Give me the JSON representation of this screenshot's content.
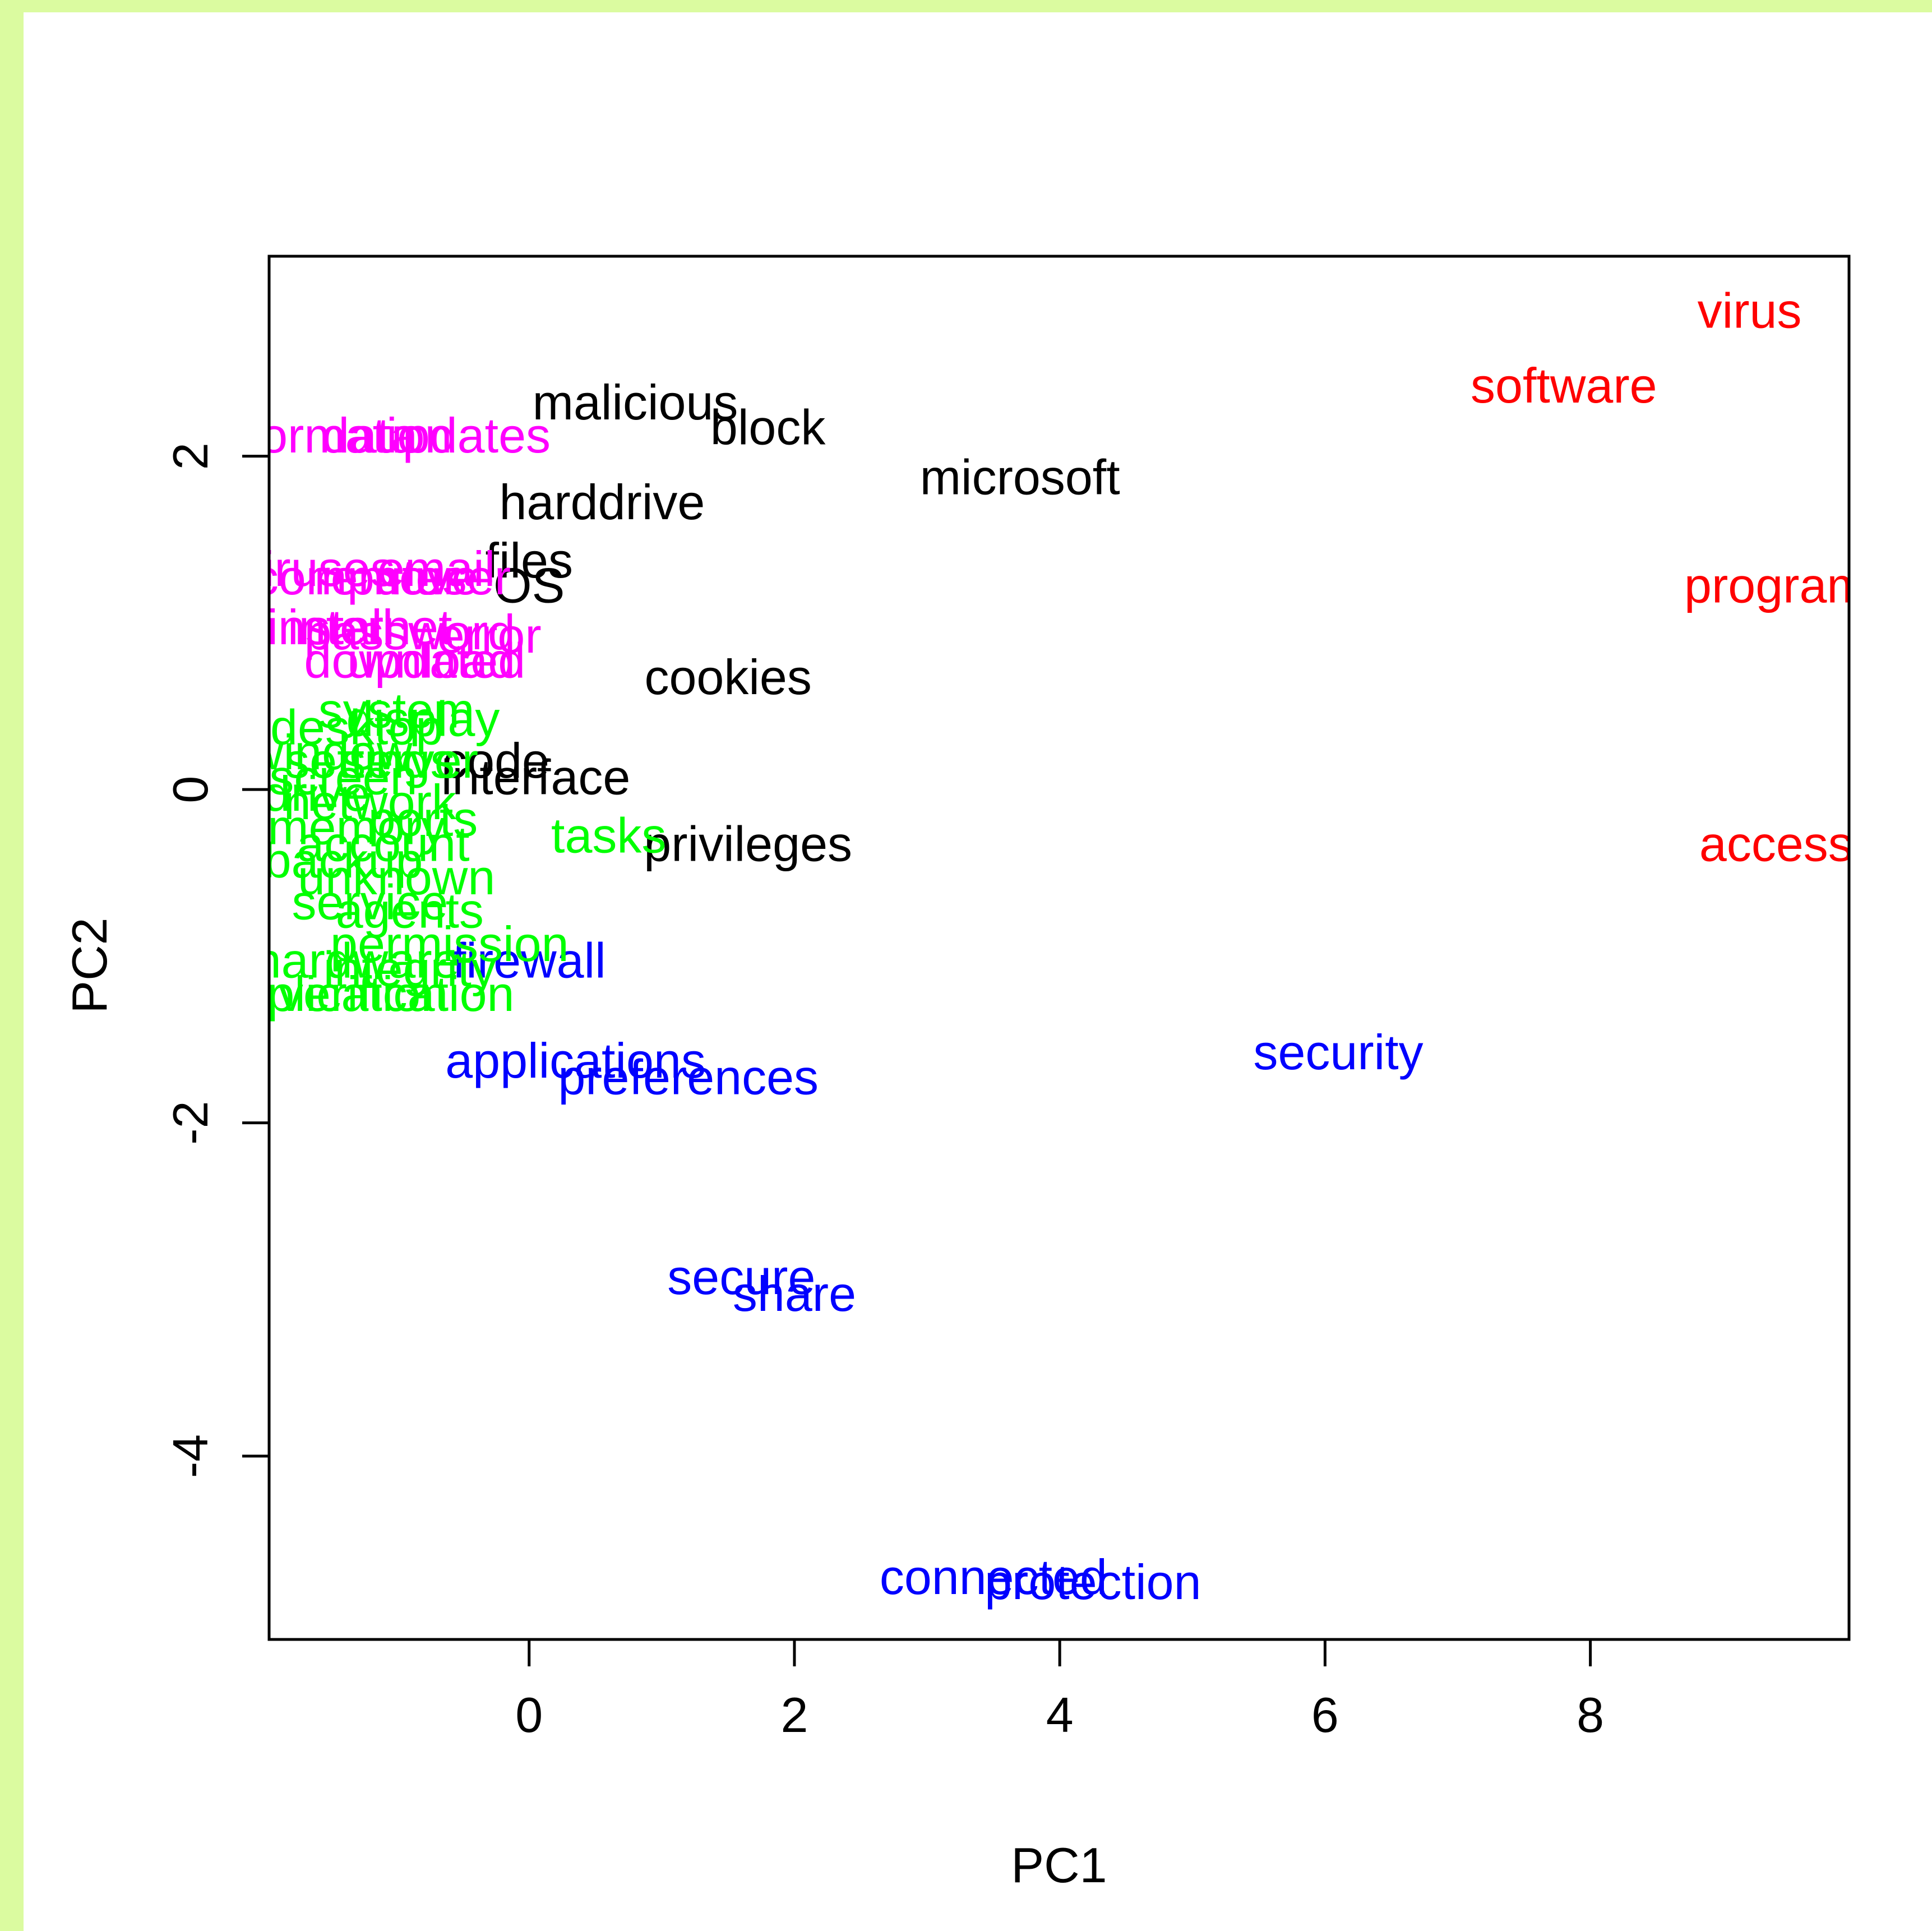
{
  "chart_data": {
    "type": "scatter",
    "title": "",
    "xlabel": "PC1",
    "ylabel": "PC2",
    "xlim": [
      -1.96,
      9.95
    ],
    "ylim": [
      -5.1,
      3.2
    ],
    "xticks": [
      "0",
      "2",
      "4",
      "6",
      "8"
    ],
    "yticks": [
      "-4",
      "-2",
      "0",
      "2"
    ],
    "grid": false,
    "legend": "none",
    "colors": {
      "red": "#ff0000",
      "blue": "#0000ff",
      "black": "#000000",
      "magenta": "#ff00ff",
      "green": "#00ff00"
    },
    "points": [
      {
        "label": "virus",
        "x": 9.2,
        "y": 2.85,
        "color": "red"
      },
      {
        "label": "software",
        "x": 7.8,
        "y": 2.4,
        "color": "red"
      },
      {
        "label": "program",
        "x": 9.4,
        "y": 1.2,
        "color": "red"
      },
      {
        "label": "access",
        "x": 9.4,
        "y": -0.35,
        "color": "red"
      },
      {
        "label": "malicious",
        "x": 0.8,
        "y": 2.3,
        "color": "black"
      },
      {
        "label": "block",
        "x": 1.8,
        "y": 2.15,
        "color": "black"
      },
      {
        "label": "microsoft",
        "x": 3.7,
        "y": 1.85,
        "color": "black"
      },
      {
        "label": "harddrive",
        "x": 0.55,
        "y": 1.7,
        "color": "black"
      },
      {
        "label": "files",
        "x": 0.0,
        "y": 1.35,
        "color": "black"
      },
      {
        "label": "OS",
        "x": 0.0,
        "y": 1.2,
        "color": "black"
      },
      {
        "label": "cookies",
        "x": 1.5,
        "y": 0.65,
        "color": "black"
      },
      {
        "label": "code",
        "x": -0.25,
        "y": 0.15,
        "color": "black"
      },
      {
        "label": "interface",
        "x": 0.05,
        "y": 0.05,
        "color": "black"
      },
      {
        "label": "privileges",
        "x": 1.65,
        "y": -0.35,
        "color": "black"
      },
      {
        "label": "firewall",
        "x": 0.0,
        "y": -1.05,
        "color": "blue"
      },
      {
        "label": "applications",
        "x": 0.35,
        "y": -1.65,
        "color": "blue"
      },
      {
        "label": "preferences",
        "x": 1.2,
        "y": -1.75,
        "color": "blue"
      },
      {
        "label": "security",
        "x": 6.1,
        "y": -1.6,
        "color": "blue"
      },
      {
        "label": "secure",
        "x": 1.6,
        "y": -2.95,
        "color": "blue"
      },
      {
        "label": "share",
        "x": 2.0,
        "y": -3.05,
        "color": "blue"
      },
      {
        "label": "connected",
        "x": 3.5,
        "y": -4.75,
        "color": "blue"
      },
      {
        "label": "protection",
        "x": 4.25,
        "y": -4.78,
        "color": "blue"
      },
      {
        "label": "information",
        "x": -1.5,
        "y": 2.1,
        "color": "magenta"
      },
      {
        "label": "updates",
        "x": -0.5,
        "y": 2.1,
        "color": "magenta"
      },
      {
        "label": "data",
        "x": -1.2,
        "y": 2.1,
        "color": "magenta"
      },
      {
        "label": "viruses",
        "x": -1.6,
        "y": 1.3,
        "color": "magenta"
      },
      {
        "label": "computer",
        "x": -1.3,
        "y": 1.25,
        "color": "magenta"
      },
      {
        "label": "remove",
        "x": -1.0,
        "y": 1.25,
        "color": "magenta"
      },
      {
        "label": "email",
        "x": -0.7,
        "y": 1.3,
        "color": "magenta"
      },
      {
        "label": "user",
        "x": -0.5,
        "y": 1.25,
        "color": "magenta"
      },
      {
        "label": "install",
        "x": -1.5,
        "y": 0.95,
        "color": "magenta"
      },
      {
        "label": "internet",
        "x": -1.2,
        "y": 0.95,
        "color": "magenta"
      },
      {
        "label": "password",
        "x": -0.9,
        "y": 0.92,
        "color": "magenta"
      },
      {
        "label": "error",
        "x": -0.3,
        "y": 0.9,
        "color": "magenta"
      },
      {
        "label": "download",
        "x": -0.9,
        "y": 0.75,
        "color": "magenta"
      },
      {
        "label": "updated",
        "x": -0.7,
        "y": 0.75,
        "color": "magenta"
      },
      {
        "label": "system",
        "x": -1.0,
        "y": 0.45,
        "color": "green"
      },
      {
        "label": "display",
        "x": -0.8,
        "y": 0.4,
        "color": "green"
      },
      {
        "label": "desktop",
        "x": -1.3,
        "y": 0.35,
        "color": "green"
      },
      {
        "label": "window",
        "x": -1.5,
        "y": 0.2,
        "color": "green"
      },
      {
        "label": "settings",
        "x": -1.2,
        "y": 0.15,
        "color": "green"
      },
      {
        "label": "server",
        "x": -0.9,
        "y": 0.15,
        "color": "green"
      },
      {
        "label": "screen",
        "x": -1.4,
        "y": 0.05,
        "color": "green"
      },
      {
        "label": "drive",
        "x": -1.6,
        "y": -0.05,
        "color": "green"
      },
      {
        "label": "network",
        "x": -1.2,
        "y": -0.1,
        "color": "green"
      },
      {
        "label": "memory",
        "x": -1.3,
        "y": -0.25,
        "color": "green"
      },
      {
        "label": "ports",
        "x": -0.8,
        "y": -0.2,
        "color": "green"
      },
      {
        "label": "tasks",
        "x": 0.6,
        "y": -0.3,
        "color": "green"
      },
      {
        "label": "account",
        "x": -1.1,
        "y": -0.35,
        "color": "green"
      },
      {
        "label": "backup",
        "x": -1.4,
        "y": -0.45,
        "color": "green"
      },
      {
        "label": "unknown",
        "x": -1.0,
        "y": -0.55,
        "color": "green"
      },
      {
        "label": "service",
        "x": -1.2,
        "y": -0.7,
        "color": "green"
      },
      {
        "label": "agents",
        "x": -0.9,
        "y": -0.75,
        "color": "green"
      },
      {
        "label": "hardware",
        "x": -1.3,
        "y": -1.05,
        "color": "green"
      },
      {
        "label": "integrity",
        "x": -0.9,
        "y": -1.1,
        "color": "green"
      },
      {
        "label": "permission",
        "x": -0.6,
        "y": -0.95,
        "color": "green"
      },
      {
        "label": "verification",
        "x": -1.0,
        "y": -1.25,
        "color": "green"
      },
      {
        "label": "application",
        "x": -1.5,
        "y": -1.25,
        "color": "green"
      }
    ]
  }
}
